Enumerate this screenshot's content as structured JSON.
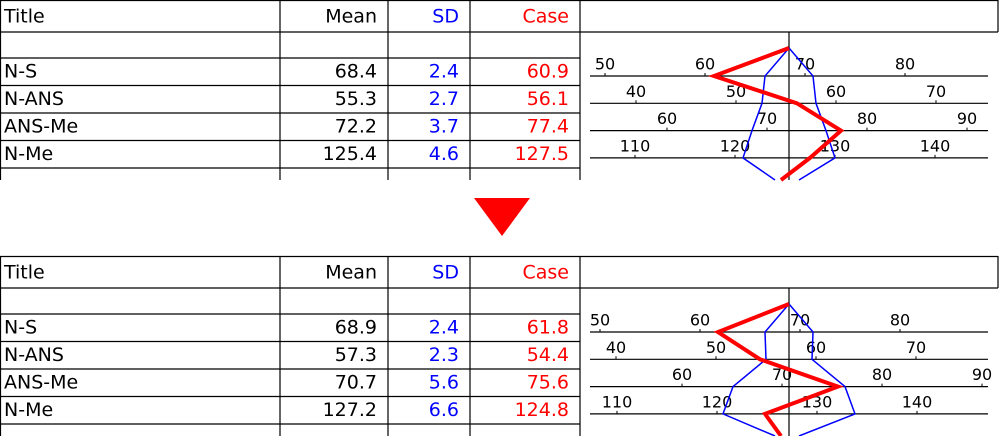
{
  "panels": [
    {
      "header": {
        "title": "Title",
        "mean": "Mean",
        "sd": "SD",
        "case": "Case"
      },
      "rows": [
        {
          "title": "N-S",
          "mean": 68.4,
          "sd": 2.4,
          "case": 60.9,
          "scale_ticks": [
            50,
            60,
            70,
            80
          ]
        },
        {
          "title": "N-ANS",
          "mean": 55.3,
          "sd": 2.7,
          "case": 56.1,
          "scale_ticks": [
            40,
            50,
            60,
            70
          ]
        },
        {
          "title": "ANS-Me",
          "mean": 72.2,
          "sd": 3.7,
          "case": 77.4,
          "scale_ticks": [
            60,
            70,
            80,
            90
          ]
        },
        {
          "title": "N-Me",
          "mean": 125.4,
          "sd": 4.6,
          "case": 127.5,
          "scale_ticks": [
            110,
            120,
            130,
            140
          ]
        }
      ]
    },
    {
      "header": {
        "title": "Title",
        "mean": "Mean",
        "sd": "SD",
        "case": "Case"
      },
      "rows": [
        {
          "title": "N-S",
          "mean": 68.9,
          "sd": 2.4,
          "case": 61.8,
          "scale_ticks": [
            50,
            60,
            70,
            80
          ]
        },
        {
          "title": "N-ANS",
          "mean": 57.3,
          "sd": 2.3,
          "case": 54.4,
          "scale_ticks": [
            40,
            50,
            60,
            70
          ]
        },
        {
          "title": "ANS-Me",
          "mean": 70.7,
          "sd": 5.6,
          "case": 75.6,
          "scale_ticks": [
            60,
            70,
            80,
            90
          ]
        },
        {
          "title": "N-Me",
          "mean": 127.2,
          "sd": 6.6,
          "case": 124.8,
          "scale_ticks": [
            110,
            120,
            130,
            140
          ]
        }
      ]
    }
  ]
}
